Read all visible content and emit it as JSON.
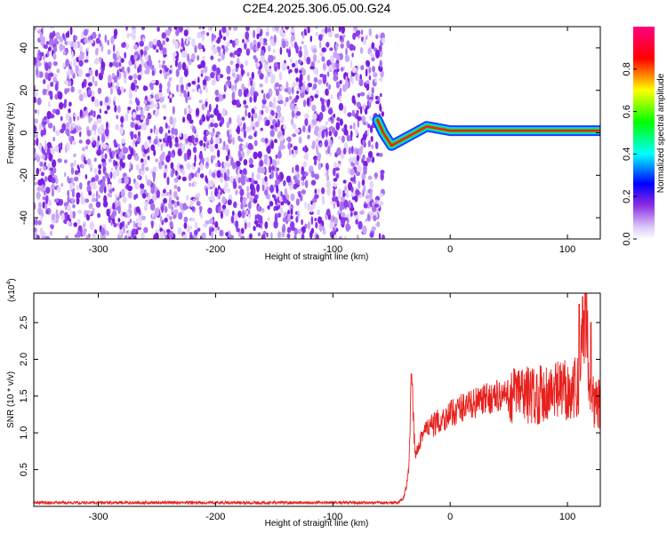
{
  "title": "C2E4.2025.306.05.00.G24",
  "chart_data": [
    {
      "type": "heatmap",
      "xlabel": "Height of straight line (km)",
      "ylabel": "Frequency (Hz)",
      "xlim": [
        -355,
        128
      ],
      "ylim": [
        -50,
        50
      ],
      "xticks": [
        -300,
        -200,
        -100,
        0,
        100
      ],
      "yticks": [
        -40,
        -20,
        0,
        20,
        40
      ],
      "noise_region_x": [
        -355,
        -57
      ],
      "signal_region_x": [
        -57,
        128
      ],
      "signal_track": [
        {
          "x": -62,
          "f": 6
        },
        {
          "x": -57,
          "f": 0
        },
        {
          "x": -50,
          "f": -6
        },
        {
          "x": -40,
          "f": -3
        },
        {
          "x": -30,
          "f": 0
        },
        {
          "x": -20,
          "f": 3
        },
        {
          "x": -10,
          "f": 2
        },
        {
          "x": 0,
          "f": 1
        },
        {
          "x": 50,
          "f": 1
        },
        {
          "x": 100,
          "f": 1
        },
        {
          "x": 128,
          "f": 1
        }
      ],
      "colorbar": {
        "label": "Normalized spectral amplitude",
        "range": [
          0,
          1
        ],
        "ticks": [
          "0.0",
          "0.2",
          "0.4",
          "0.6",
          "0.8"
        ],
        "colors": [
          "#ffffff",
          "#8a2be2",
          "#0000ff",
          "#00ffff",
          "#00ff00",
          "#ffff00",
          "#ff0000",
          "#ff0080"
        ]
      }
    },
    {
      "type": "line",
      "xlabel": "Height of straight line (km)",
      "ylabel": "SNR (10 * v/v)",
      "multiplier": "(x10",
      "multiplier_exp": "4",
      "multiplier_close": ")",
      "xlim": [
        -355,
        128
      ],
      "ylim": [
        0,
        2.9
      ],
      "xticks": [
        -300,
        -200,
        -100,
        0,
        100
      ],
      "yticks": [
        "0.5",
        "1.0",
        "1.5",
        "2.0",
        "2.5"
      ],
      "color": "#e8211d",
      "series": [
        {
          "x": [
            -355,
            -300,
            -200,
            -100,
            -45,
            -40,
            -37,
            -35,
            -33,
            -30,
            -25,
            -20,
            -10,
            0,
            10,
            20,
            30,
            40,
            50,
            60,
            70,
            80,
            90,
            100,
            105,
            110,
            115,
            120,
            128
          ],
          "values": [
            0.05,
            0.05,
            0.05,
            0.05,
            0.05,
            0.1,
            0.3,
            0.55,
            1.8,
            0.7,
            0.95,
            1.05,
            1.15,
            1.25,
            1.35,
            1.4,
            1.45,
            1.5,
            1.5,
            1.55,
            1.5,
            1.55,
            1.55,
            1.6,
            1.55,
            1.7,
            2.8,
            1.5,
            1.35
          ]
        }
      ]
    }
  ]
}
